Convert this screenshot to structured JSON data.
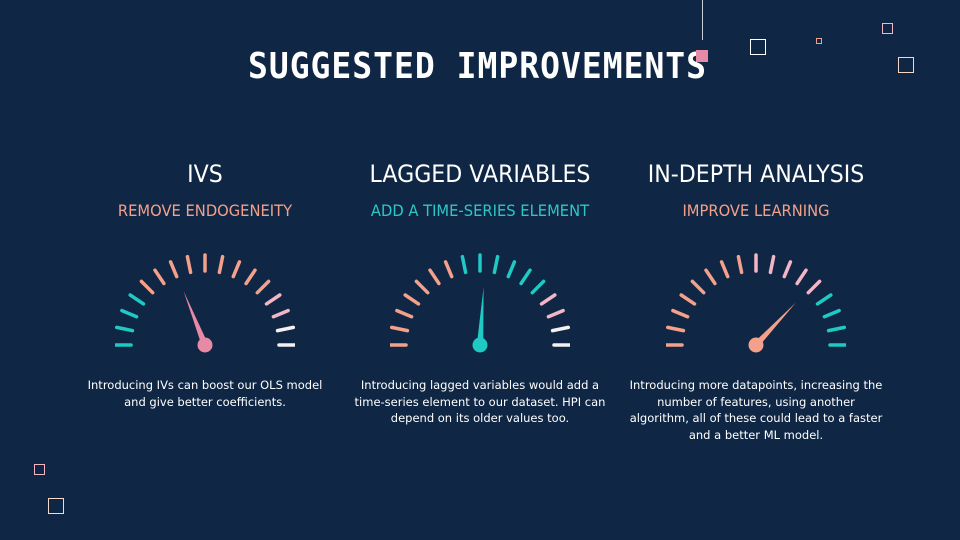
{
  "slide": {
    "title": "SUGGESTED IMPROVEMENTS",
    "background": "#0f2744"
  },
  "columns": [
    {
      "heading": "IVS",
      "subheading": "REMOVE ENDOGENEITY",
      "subheading_color": "#f4a08a",
      "description": "Introducing IVs can boost our OLS model and give better coefficients.",
      "gauge_value": 0.38,
      "needle_color": "#e68aa6"
    },
    {
      "heading": "LAGGED VARIABLES",
      "subheading": "ADD A TIME-SERIES ELEMENT",
      "subheading_color": "#2ec7c9",
      "description": "Introducing lagged variables would add a time-series element to our dataset. HPI can depend on its older values too.",
      "gauge_value": 0.52,
      "needle_color": "#1fc9c4"
    },
    {
      "heading": "IN-DEPTH ANALYSIS",
      "subheading": "IMPROVE LEARNING",
      "subheading_color": "#f4a08a",
      "description": "Introducing more datapoints, increasing the number of features, using another algorithm, all of these could lead to a faster and a better ML model.",
      "gauge_value": 0.74,
      "needle_color": "#f4a08a"
    }
  ],
  "gauge_palette": {
    "teal": "#1fc9c4",
    "salmon": "#f4a08a",
    "pink": "#f2b6c6",
    "white": "#f5f0f2"
  }
}
